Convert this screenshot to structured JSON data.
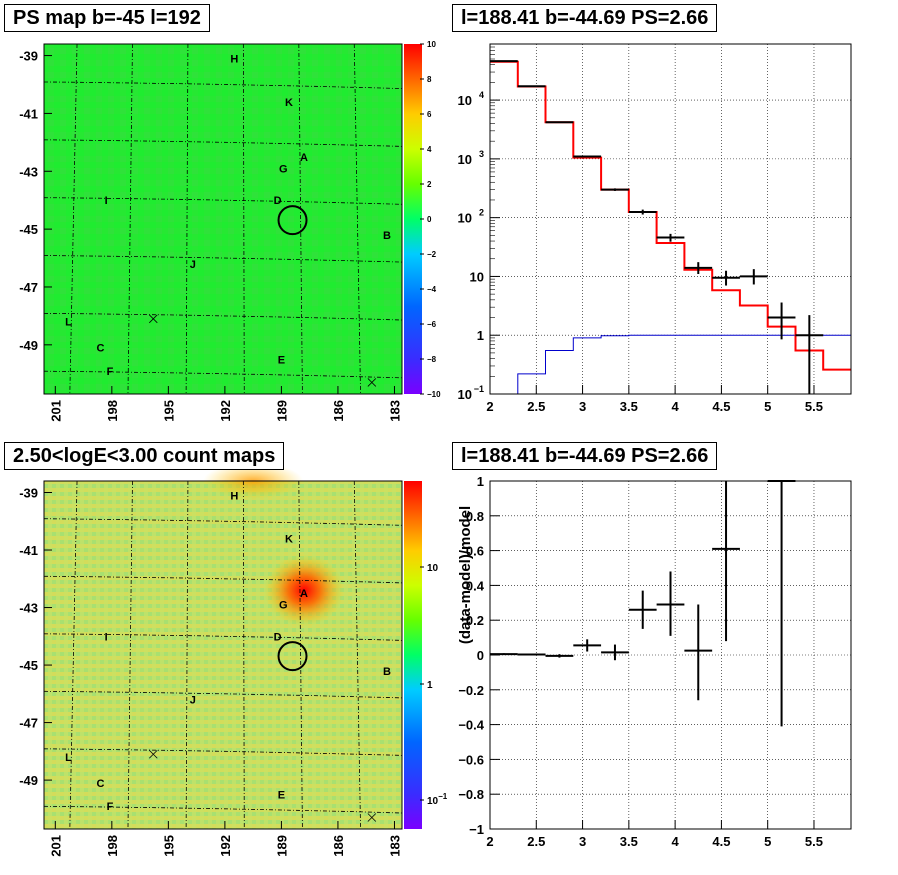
{
  "panels": {
    "ps_map_title": "PS map b=-45 l=192",
    "spectrum_title": "l=188.41 b=-44.69 PS=2.66",
    "count_map_title": "2.50<logE<3.00 count maps",
    "residual_title": "l=188.41 b=-44.69 PS=2.66"
  },
  "colors": {
    "ps_map_bg": "#22e62f",
    "count_map_bg": "#b8e26a",
    "model_line": "#ff0000",
    "exposure_line": "#0000cc",
    "data_points": "#000000",
    "source_marker": "#000000"
  },
  "chart_data": [
    {
      "type": "heatmap",
      "title": "PS map b=-45 l=192",
      "xticks": [
        "201",
        "198",
        "195",
        "192",
        "189",
        "186",
        "183"
      ],
      "yticks": [
        "-39",
        "-41",
        "-43",
        "-45",
        "-47",
        "-49"
      ],
      "colorbar": {
        "min": -10,
        "max": 10,
        "ticks": [
          "10",
          "8",
          "6",
          "4",
          "2",
          "0",
          "−2",
          "−4",
          "−6",
          "−8",
          "−10"
        ]
      },
      "source_labels": [
        {
          "label": "H",
          "l": 191.5,
          "b": -39.1
        },
        {
          "label": "K",
          "l": 188.6,
          "b": -40.6
        },
        {
          "label": "A",
          "l": 187.8,
          "b": -42.5
        },
        {
          "label": "G",
          "l": 188.9,
          "b": -42.9
        },
        {
          "label": "D",
          "l": 189.2,
          "b": -44.0
        },
        {
          "label": "I",
          "l": 198.3,
          "b": -44.0
        },
        {
          "label": "B",
          "l": 183.4,
          "b": -45.2
        },
        {
          "label": "J",
          "l": 193.7,
          "b": -46.2
        },
        {
          "label": "L",
          "l": 200.3,
          "b": -48.2
        },
        {
          "label": "C",
          "l": 198.6,
          "b": -49.1
        },
        {
          "label": "F",
          "l": 198.1,
          "b": -49.9
        },
        {
          "label": "E",
          "l": 189.0,
          "b": -49.5
        }
      ],
      "cross_markers": [
        {
          "l": 195.8,
          "b": -48.1
        },
        {
          "l": 184.2,
          "b": -50.3
        }
      ],
      "circle": {
        "l": 188.41,
        "b": -44.69
      }
    },
    {
      "type": "line",
      "title": "l=188.41 b=-44.69 PS=2.66",
      "xlim": [
        2,
        5.9
      ],
      "ylim": [
        0.1,
        90000
      ],
      "yscale": "log",
      "xticks": [
        "2",
        "2.5",
        "3",
        "3.5",
        "4",
        "4.5",
        "5",
        "5.5"
      ],
      "yticks": [
        {
          "v": 0.1,
          "base": "10",
          "exp": "−1",
          "label": ""
        },
        {
          "v": 1,
          "base": "",
          "exp": "",
          "label": "1"
        },
        {
          "v": 10,
          "base": "",
          "exp": "",
          "label": "10"
        },
        {
          "v": 100,
          "base": "10",
          "exp": "2",
          "label": ""
        },
        {
          "v": 1000,
          "base": "10",
          "exp": "3",
          "label": ""
        },
        {
          "v": 10000,
          "base": "10",
          "exp": "4",
          "label": ""
        }
      ],
      "grid": true,
      "series": [
        {
          "role": "model",
          "bins": [
            2.0,
            2.3,
            2.6,
            2.9,
            3.2,
            3.5,
            3.8,
            4.1,
            4.4,
            4.7,
            5.0,
            5.3,
            5.6,
            5.9
          ],
          "values": [
            45000,
            17000,
            4200,
            1050,
            300,
            125,
            37,
            13,
            5.8,
            3.2,
            1.4,
            0.55,
            0.26
          ]
        },
        {
          "role": "exposure",
          "bins": [
            2.0,
            2.3,
            2.6,
            2.9,
            3.2,
            3.5,
            3.8,
            4.1,
            4.4,
            4.7,
            5.0,
            5.3,
            5.6,
            5.9
          ],
          "values": [
            0.1,
            0.22,
            0.55,
            0.9,
            0.98,
            1.0,
            1.0,
            1.0,
            1.0,
            1.0,
            1.0,
            1.0,
            1.0
          ]
        },
        {
          "role": "data",
          "points": [
            {
              "x": 2.15,
              "y": 46000,
              "xerr": 0.15,
              "ylo": 45500,
              "yhi": 46500
            },
            {
              "x": 2.45,
              "y": 17200,
              "xerr": 0.15,
              "ylo": 17000,
              "yhi": 17400
            },
            {
              "x": 2.75,
              "y": 4200,
              "xerr": 0.15,
              "ylo": 4120,
              "yhi": 4280
            },
            {
              "x": 3.05,
              "y": 1100,
              "xerr": 0.15,
              "ylo": 1060,
              "yhi": 1140
            },
            {
              "x": 3.35,
              "y": 300,
              "xerr": 0.15,
              "ylo": 285,
              "yhi": 315
            },
            {
              "x": 3.65,
              "y": 125,
              "xerr": 0.15,
              "ylo": 113,
              "yhi": 137
            },
            {
              "x": 3.95,
              "y": 46,
              "xerr": 0.15,
              "ylo": 39,
              "yhi": 53
            },
            {
              "x": 4.25,
              "y": 14,
              "xerr": 0.15,
              "ylo": 11,
              "yhi": 17.5
            },
            {
              "x": 4.55,
              "y": 9.5,
              "xerr": 0.15,
              "ylo": 7,
              "yhi": 12.5
            },
            {
              "x": 4.85,
              "y": 10,
              "xerr": 0.15,
              "ylo": 7.3,
              "yhi": 13.3
            },
            {
              "x": 5.15,
              "y": 2,
              "xerr": 0.15,
              "ylo": 0.85,
              "yhi": 3.6
            },
            {
              "x": 5.45,
              "y": 1,
              "xerr": 0.15,
              "ylo": 0.1,
              "yhi": 2.2
            }
          ]
        }
      ]
    },
    {
      "type": "heatmap",
      "title": "2.50<logE<3.00 count maps",
      "xticks": [
        "201",
        "198",
        "195",
        "192",
        "189",
        "186",
        "183"
      ],
      "yticks": [
        "-39",
        "-41",
        "-43",
        "-45",
        "-47",
        "-49"
      ],
      "colorbar": {
        "scale": "log",
        "ticks": [
          "10",
          "1",
          "10"
        ],
        "tick_exps": [
          "",
          "",
          "−1"
        ]
      },
      "hotspots": [
        {
          "l": 187.8,
          "b": -42.4
        },
        {
          "l": 190.5,
          "b": -38.6
        }
      ],
      "source_labels": [
        {
          "label": "H",
          "l": 191.5,
          "b": -39.1
        },
        {
          "label": "K",
          "l": 188.6,
          "b": -40.6
        },
        {
          "label": "A",
          "l": 187.8,
          "b": -42.5
        },
        {
          "label": "G",
          "l": 188.9,
          "b": -42.9
        },
        {
          "label": "D",
          "l": 189.2,
          "b": -44.0
        },
        {
          "label": "I",
          "l": 198.3,
          "b": -44.0
        },
        {
          "label": "B",
          "l": 183.4,
          "b": -45.2
        },
        {
          "label": "J",
          "l": 193.7,
          "b": -46.2
        },
        {
          "label": "L",
          "l": 200.3,
          "b": -48.2
        },
        {
          "label": "C",
          "l": 198.6,
          "b": -49.1
        },
        {
          "label": "F",
          "l": 198.1,
          "b": -49.9
        },
        {
          "label": "E",
          "l": 189.0,
          "b": -49.5
        }
      ],
      "cross_markers": [
        {
          "l": 195.8,
          "b": -48.1
        },
        {
          "l": 184.2,
          "b": -50.3
        }
      ],
      "circle": {
        "l": 188.41,
        "b": -44.69
      }
    },
    {
      "type": "scatter",
      "title": "l=188.41 b=-44.69 PS=2.66",
      "ylabel": "(data-model)/model",
      "xlim": [
        2,
        5.9
      ],
      "ylim": [
        -1,
        1
      ],
      "xticks": [
        "2",
        "2.5",
        "3",
        "3.5",
        "4",
        "4.5",
        "5",
        "5.5"
      ],
      "yticks": [
        "1",
        "0.8",
        "0.6",
        "0.4",
        "0.2",
        "0",
        "−0.2",
        "−0.4",
        "−0.6",
        "−0.8",
        "−1"
      ],
      "grid": true,
      "points": [
        {
          "x": 2.15,
          "y": 0.005,
          "xerr": 0.15,
          "ylo": 0.0,
          "yhi": 0.01
        },
        {
          "x": 2.45,
          "y": 0.003,
          "xerr": 0.15,
          "ylo": -0.002,
          "yhi": 0.008
        },
        {
          "x": 2.75,
          "y": -0.005,
          "xerr": 0.15,
          "ylo": -0.015,
          "yhi": 0.005
        },
        {
          "x": 3.05,
          "y": 0.055,
          "xerr": 0.15,
          "ylo": 0.02,
          "yhi": 0.09
        },
        {
          "x": 3.35,
          "y": 0.015,
          "xerr": 0.15,
          "ylo": -0.03,
          "yhi": 0.06
        },
        {
          "x": 3.65,
          "y": 0.26,
          "xerr": 0.15,
          "ylo": 0.15,
          "yhi": 0.37
        },
        {
          "x": 3.95,
          "y": 0.29,
          "xerr": 0.15,
          "ylo": 0.11,
          "yhi": 0.48
        },
        {
          "x": 4.25,
          "y": 0.025,
          "xerr": 0.15,
          "ylo": -0.26,
          "yhi": 0.29
        },
        {
          "x": 4.55,
          "y": 0.61,
          "xerr": 0.15,
          "ylo": 0.08,
          "yhi": 1.0
        },
        {
          "x": 5.15,
          "y": 1.0,
          "xerr": 0.15,
          "ylo": -0.41,
          "yhi": 1.0
        }
      ]
    }
  ]
}
